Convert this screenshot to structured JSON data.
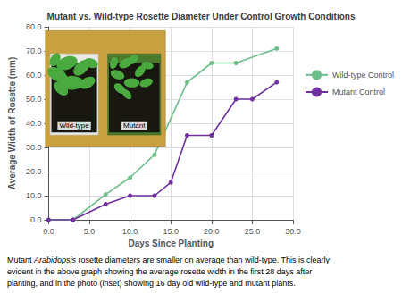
{
  "chart_data": {
    "type": "line",
    "title": "Mutant vs. Wild-type Rosette Diameter Under Control Growth Conditions",
    "x_label": "Days Since Planting",
    "y_label": "Average Width of Rosette (mm)",
    "xlim": [
      0.0,
      30.0
    ],
    "ylim": [
      0.0,
      80.0
    ],
    "xticks": [
      {
        "value": 0,
        "label": "0.0"
      },
      {
        "value": 5,
        "label": "5.0"
      },
      {
        "value": 10,
        "label": "10.0"
      },
      {
        "value": 15,
        "label": "15.0"
      },
      {
        "value": 20,
        "label": "20.0"
      },
      {
        "value": 25,
        "label": "25.0"
      },
      {
        "value": 30,
        "label": "30.0"
      }
    ],
    "yticks": [
      {
        "value": 0,
        "label": "0.0"
      },
      {
        "value": 10,
        "label": "10.0"
      },
      {
        "value": 20,
        "label": "20.0"
      },
      {
        "value": 30,
        "label": "30.0"
      },
      {
        "value": 40,
        "label": "40.0"
      },
      {
        "value": 50,
        "label": "50.0"
      },
      {
        "value": 60,
        "label": "60.0"
      },
      {
        "value": 70,
        "label": "70.0"
      },
      {
        "value": 80,
        "label": "80.0"
      }
    ],
    "grid": true,
    "legend": "right",
    "marker": "circle",
    "series": [
      {
        "name": "Wild-type Control",
        "color": "#6dbf8a",
        "x": [
          0,
          3,
          7,
          10,
          13,
          17,
          20,
          23,
          28
        ],
        "values": [
          0,
          0,
          10.5,
          17.5,
          27,
          57,
          65,
          65,
          71
        ]
      },
      {
        "name": "Mutant Control",
        "color": "#7030a0",
        "x": [
          0,
          3,
          7,
          10,
          13,
          15,
          17,
          20,
          23,
          25,
          28
        ],
        "values": [
          0,
          0,
          6.5,
          10,
          10,
          15.5,
          35,
          35,
          50,
          50,
          57
        ]
      }
    ],
    "annotations": [
      "Wild-type",
      "Mutant"
    ],
    "caption": [
      [
        "Mutant ",
        "Arabidopsis",
        " rosette diameters are smaller on average than wild-type. This is clearly"
      ],
      "evident in the above graph showing the average rosette width in the first 28 days after",
      "planting, and in the photo (inset) showing 16 day old wild-type and mutant plants."
    ]
  }
}
